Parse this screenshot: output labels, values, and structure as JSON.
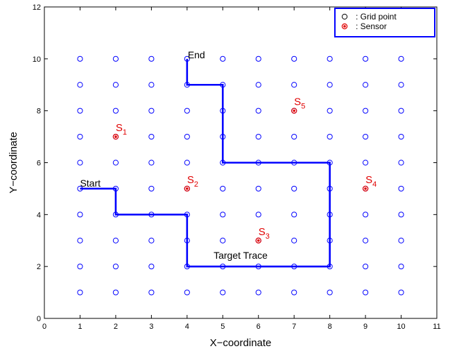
{
  "chart_data": {
    "type": "scatter",
    "xlabel": "X−coordinate",
    "ylabel": "Y−coordinate",
    "xlim": [
      0,
      11
    ],
    "ylim": [
      0,
      12
    ],
    "x_ticks": [
      0,
      1,
      2,
      3,
      4,
      5,
      6,
      7,
      8,
      9,
      10,
      11
    ],
    "y_ticks": [
      0,
      2,
      4,
      6,
      8,
      10,
      12
    ],
    "grid": false,
    "legend_position": "top-right",
    "legend": [
      {
        "marker": "open-circle",
        "label": ": Grid point",
        "color": "#0000ff"
      },
      {
        "marker": "sensor",
        "label": ": Sensor",
        "color": "#e00000"
      }
    ],
    "grid_points": {
      "x_values": [
        1,
        2,
        3,
        4,
        5,
        6,
        7,
        8,
        9,
        10
      ],
      "y_values": [
        1,
        2,
        3,
        4,
        5,
        6,
        7,
        8,
        9,
        10
      ],
      "color": "#0000ff"
    },
    "sensors": [
      {
        "label": "S",
        "sub": "1",
        "x": 2,
        "y": 7
      },
      {
        "label": "S",
        "sub": "2",
        "x": 4,
        "y": 5
      },
      {
        "label": "S",
        "sub": "3",
        "x": 6,
        "y": 3
      },
      {
        "label": "S",
        "sub": "4",
        "x": 9,
        "y": 5
      },
      {
        "label": "S",
        "sub": "5",
        "x": 7,
        "y": 8
      }
    ],
    "sensor_color": "#e00000",
    "target_trace": {
      "color": "#0000ff",
      "points": [
        [
          1,
          5
        ],
        [
          2,
          5
        ],
        [
          2,
          4
        ],
        [
          4,
          4
        ],
        [
          4,
          2
        ],
        [
          8,
          2
        ],
        [
          8,
          6
        ],
        [
          5,
          6
        ],
        [
          5,
          9
        ],
        [
          4,
          9
        ],
        [
          4,
          10
        ]
      ]
    },
    "annotations": [
      {
        "text": "Start",
        "x": 1,
        "y": 5
      },
      {
        "text": "End",
        "x": 4,
        "y": 10
      },
      {
        "text": "Target Trace",
        "x": 5.5,
        "y": 2
      }
    ]
  }
}
